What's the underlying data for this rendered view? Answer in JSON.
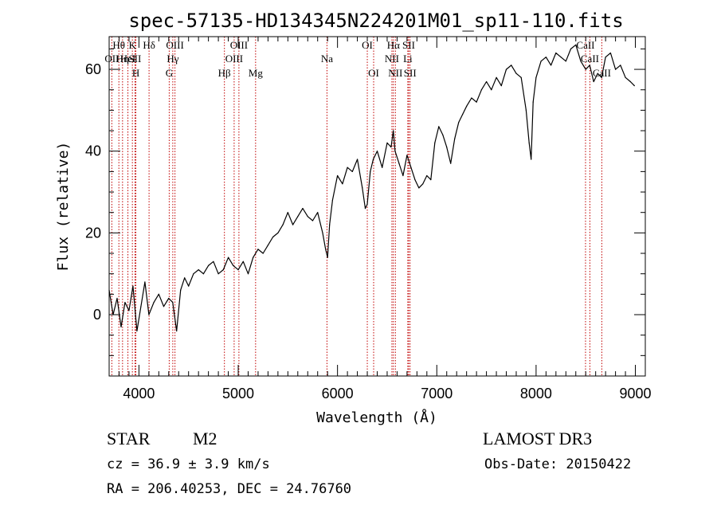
{
  "chart_data": {
    "type": "line",
    "title": "spec-57135-HD134345N224201M01_sp11-110.fits",
    "xlabel": "Wavelength (Å)",
    "ylabel": "Flux (relative)",
    "xlim": [
      3700,
      9100
    ],
    "ylim": [
      -15,
      68
    ],
    "xticks": [
      4000,
      5000,
      6000,
      7000,
      8000,
      9000
    ],
    "yticks": [
      0,
      20,
      40,
      60
    ],
    "series": [
      {
        "name": "flux",
        "x": [
          3700,
          3740,
          3780,
          3820,
          3860,
          3900,
          3940,
          3980,
          4020,
          4060,
          4100,
          4150,
          4200,
          4250,
          4300,
          4340,
          4380,
          4420,
          4460,
          4500,
          4550,
          4600,
          4650,
          4700,
          4750,
          4800,
          4850,
          4900,
          4950,
          5000,
          5050,
          5100,
          5150,
          5200,
          5250,
          5300,
          5350,
          5400,
          5450,
          5500,
          5550,
          5600,
          5650,
          5700,
          5750,
          5800,
          5850,
          5880,
          5900,
          5920,
          5950,
          6000,
          6050,
          6100,
          6150,
          6200,
          6250,
          6280,
          6300,
          6330,
          6360,
          6400,
          6450,
          6500,
          6540,
          6562,
          6580,
          6620,
          6660,
          6700,
          6740,
          6780,
          6820,
          6860,
          6900,
          6940,
          6980,
          7020,
          7060,
          7100,
          7140,
          7180,
          7220,
          7260,
          7300,
          7350,
          7400,
          7450,
          7500,
          7550,
          7600,
          7650,
          7700,
          7750,
          7800,
          7850,
          7900,
          7930,
          7950,
          7970,
          8000,
          8050,
          8100,
          8150,
          8200,
          8250,
          8300,
          8350,
          8400,
          8450,
          8500,
          8540,
          8580,
          8620,
          8660,
          8700,
          8750,
          8800,
          8850,
          8900,
          8950,
          8990
        ],
        "values": [
          6,
          0,
          4,
          -3,
          3,
          1,
          7,
          -4,
          2,
          8,
          0,
          3,
          5,
          2,
          4,
          3,
          -4,
          6,
          9,
          7,
          10,
          11,
          10,
          12,
          13,
          10,
          11,
          14,
          12,
          11,
          13,
          10,
          14,
          16,
          15,
          17,
          19,
          20,
          22,
          25,
          22,
          24,
          26,
          24,
          23,
          25,
          20,
          16,
          14,
          22,
          28,
          34,
          32,
          36,
          35,
          38,
          31,
          26,
          27,
          35,
          38,
          40,
          36,
          42,
          41,
          45,
          40,
          37,
          34,
          39,
          36,
          33,
          31,
          32,
          34,
          33,
          42,
          46,
          44,
          41,
          37,
          43,
          47,
          49,
          51,
          53,
          52,
          55,
          57,
          55,
          58,
          56,
          60,
          61,
          59,
          58,
          50,
          42,
          38,
          52,
          58,
          62,
          63,
          61,
          64,
          63,
          62,
          65,
          66,
          62,
          60,
          61,
          57,
          59,
          58,
          63,
          64,
          60,
          61,
          58,
          57,
          56
        ]
      }
    ],
    "lines": [
      {
        "name": "OII",
        "x": 3727,
        "row": 2
      },
      {
        "name": "Hθ",
        "x": 3798,
        "row": 1
      },
      {
        "name": "Hη",
        "x": 3835,
        "row": 2
      },
      {
        "name": "HeI",
        "x": 3889,
        "row": 2
      },
      {
        "name": "K",
        "x": 3934,
        "row": 1
      },
      {
        "name": "SII",
        "x": 3960,
        "row": 2
      },
      {
        "name": "H",
        "x": 3969,
        "row": 3
      },
      {
        "name": "Hδ",
        "x": 4102,
        "row": 1
      },
      {
        "name": "G",
        "x": 4305,
        "row": 3
      },
      {
        "name": "OIII",
        "x": 4363,
        "row": 1
      },
      {
        "name": "Hγ",
        "x": 4341,
        "row": 2
      },
      {
        "name": "Hβ",
        "x": 4861,
        "row": 3
      },
      {
        "name": "OIII",
        "x": 4959,
        "row": 2
      },
      {
        "name": "OIII",
        "x": 5007,
        "row": 1
      },
      {
        "name": "Mg",
        "x": 5175,
        "row": 3
      },
      {
        "name": "Na",
        "x": 5894,
        "row": 2
      },
      {
        "name": "OI",
        "x": 6300,
        "row": 1
      },
      {
        "name": "OI",
        "x": 6364,
        "row": 3
      },
      {
        "name": "NII",
        "x": 6548,
        "row": 2
      },
      {
        "name": "NII",
        "x": 6583,
        "row": 3
      },
      {
        "name": "Hα",
        "x": 6563,
        "row": 1
      },
      {
        "name": "Li",
        "x": 6708,
        "row": 2
      },
      {
        "name": "SII",
        "x": 6717,
        "row": 1
      },
      {
        "name": "SII",
        "x": 6731,
        "row": 3
      },
      {
        "name": "CaII",
        "x": 8498,
        "row": 1
      },
      {
        "name": "CaII",
        "x": 8542,
        "row": 2
      },
      {
        "name": "CaII",
        "x": 8662,
        "row": 3
      }
    ]
  },
  "info": {
    "class": "STAR",
    "subclass": "M2",
    "survey": "LAMOST DR3",
    "cz": "cz = 36.9 ± 3.9 km/s",
    "obs_date": "Obs-Date: 20150422",
    "radec": "RA = 206.40253, DEC =  24.76760"
  },
  "colors": {
    "line_marker": "#c00000",
    "spectrum": "#000000"
  }
}
